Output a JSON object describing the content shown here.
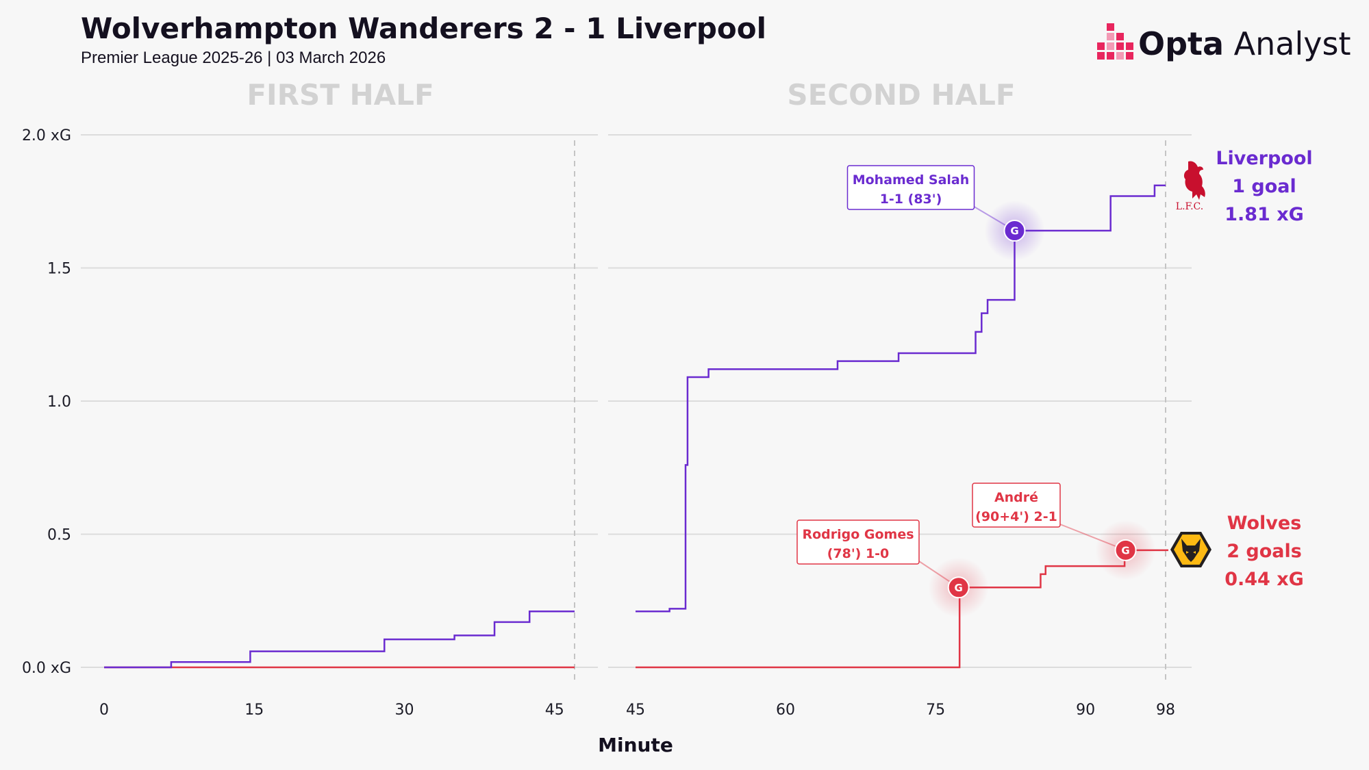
{
  "header": {
    "title": "Wolverhampton Wanderers 2 - 1 Liverpool",
    "subtitle": "Premier League 2025-26 | 03 March 2026"
  },
  "brand": {
    "name_bold": "Opta",
    "name_light": " Analyst",
    "accent": "#e8265e"
  },
  "chart_data": {
    "type": "line",
    "step": true,
    "xlabel": "Minute",
    "ylabel": "",
    "ylim": [
      0,
      2.0
    ],
    "yticks": [
      0,
      0.5,
      1.0,
      1.5,
      2.0
    ],
    "ytick_labels": [
      "0.0 xG",
      "0.5",
      "1.0",
      "1.5",
      "2.0 xG"
    ],
    "grid": true,
    "panels": [
      {
        "title": "FIRST HALF",
        "xlim": [
          0,
          47
        ],
        "xticks": [
          0,
          15,
          30,
          45
        ],
        "xtick_labels": [
          "0",
          "15",
          "30",
          "45"
        ],
        "end_line": 47
      },
      {
        "title": "SECOND HALF",
        "xlim": [
          45,
          98
        ],
        "xticks": [
          45,
          60,
          75,
          90,
          98
        ],
        "xtick_labels": [
          "45",
          "60",
          "75",
          "90",
          "98"
        ],
        "end_line": 98
      }
    ],
    "series": [
      {
        "name": "Liverpool",
        "color": "#6a2bd0",
        "total_label": "1 goal",
        "xg_label": "1.81 xG",
        "first_half": [
          [
            0,
            0
          ],
          [
            6.7,
            0.02
          ],
          [
            14.6,
            0.06
          ],
          [
            28,
            0.105
          ],
          [
            35,
            0.12
          ],
          [
            39,
            0.17
          ],
          [
            42.5,
            0.21
          ],
          [
            47,
            0.21
          ]
        ],
        "second_half": [
          [
            45,
            0.21
          ],
          [
            48.4,
            0.22
          ],
          [
            50,
            0.76
          ],
          [
            50.2,
            1.09
          ],
          [
            52.3,
            1.12
          ],
          [
            65.2,
            1.15
          ],
          [
            71.3,
            1.18
          ],
          [
            79,
            1.26
          ],
          [
            79.6,
            1.33
          ],
          [
            80.2,
            1.38
          ],
          [
            82.9,
            1.64
          ],
          [
            92.5,
            1.77
          ],
          [
            96.9,
            1.81
          ],
          [
            98,
            1.81
          ]
        ]
      },
      {
        "name": "Wolves",
        "color": "#e03545",
        "total_label": "2 goals",
        "xg_label": "0.44 xG",
        "first_half": [
          [
            0,
            0
          ],
          [
            47,
            0
          ]
        ],
        "second_half": [
          [
            45,
            0
          ],
          [
            77.3,
            0
          ],
          [
            77.4,
            0.3
          ],
          [
            85.5,
            0.35
          ],
          [
            86,
            0.38
          ],
          [
            93.9,
            0.44
          ],
          [
            98,
            0.44
          ]
        ]
      }
    ],
    "goals": [
      {
        "team": "Liverpool",
        "minute": 82.9,
        "xg": 1.64,
        "marker": "G",
        "player": "Mohamed Salah",
        "detail": "1-1 (83')",
        "color": "#6a2bd0"
      },
      {
        "team": "Wolves",
        "minute": 77.3,
        "xg": 0.3,
        "marker": "G",
        "player": "Rodrigo Gomes",
        "detail": "(78') 1-0",
        "color": "#e03545"
      },
      {
        "team": "Wolves",
        "minute": 94.0,
        "xg": 0.44,
        "marker": "G",
        "player": "André",
        "detail": "(90+4') 2-1",
        "color": "#e03545"
      }
    ],
    "crest_text": {
      "liverpool": "L.F.C."
    }
  }
}
